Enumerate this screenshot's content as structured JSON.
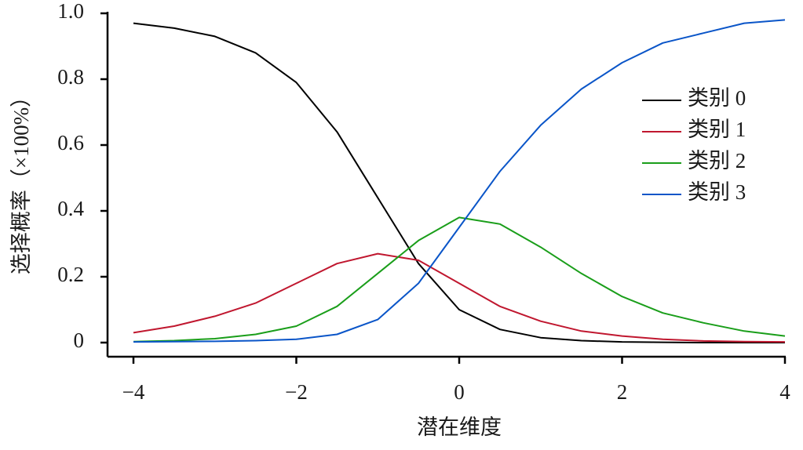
{
  "chart_data": {
    "type": "line",
    "x_label": "潜在维度",
    "y_label": "选择概率（×100%）",
    "x": [
      -4,
      -3.5,
      -3,
      -2.5,
      -2,
      -1.5,
      -1,
      -0.5,
      0,
      0.5,
      1,
      1.5,
      2,
      2.5,
      3,
      3.5,
      4
    ],
    "series": [
      {
        "name": "类别 0",
        "color": "#000000",
        "values": [
          0.97,
          0.955,
          0.93,
          0.88,
          0.79,
          0.64,
          0.44,
          0.24,
          0.1,
          0.04,
          0.015,
          0.006,
          0.002,
          0.001,
          0,
          0,
          0
        ]
      },
      {
        "name": "类别 1",
        "color": "#c0172f",
        "values": [
          0.03,
          0.05,
          0.08,
          0.12,
          0.18,
          0.24,
          0.27,
          0.25,
          0.18,
          0.11,
          0.065,
          0.035,
          0.02,
          0.01,
          0.005,
          0.003,
          0.002
        ]
      },
      {
        "name": "类别 2",
        "color": "#1a9e1a",
        "values": [
          0.003,
          0.006,
          0.012,
          0.025,
          0.05,
          0.11,
          0.21,
          0.31,
          0.38,
          0.36,
          0.29,
          0.21,
          0.14,
          0.09,
          0.06,
          0.035,
          0.02
        ]
      },
      {
        "name": "类别 3",
        "color": "#0a55c8",
        "values": [
          0.002,
          0.003,
          0.004,
          0.006,
          0.01,
          0.025,
          0.07,
          0.18,
          0.35,
          0.52,
          0.66,
          0.77,
          0.85,
          0.91,
          0.94,
          0.97,
          0.98
        ]
      }
    ],
    "xlim": [
      -4,
      4
    ],
    "xticks": [
      {
        "value": -4,
        "label": "−4"
      },
      {
        "value": -2,
        "label": "−2"
      },
      0,
      2,
      4
    ],
    "ylim": [
      0,
      1
    ],
    "yticks": [
      0,
      0.2,
      0.4,
      0.6,
      0.8,
      {
        "value": 1,
        "label": "1.0"
      }
    ],
    "legend": "upper right"
  }
}
